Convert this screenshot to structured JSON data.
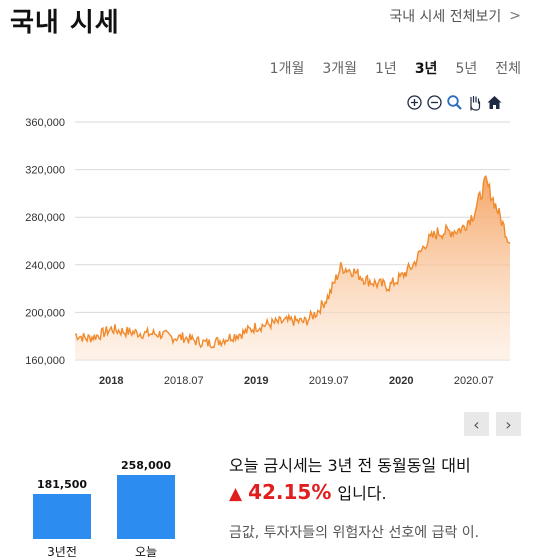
{
  "header": {
    "title": "국내 시세",
    "all_link": "국내 시세 전체보기"
  },
  "tabs": [
    "1개월",
    "3개월",
    "1년",
    "3년",
    "5년",
    "전체"
  ],
  "active_tab": "3년",
  "chart_tools": [
    "zoom-in-icon",
    "zoom-out-icon",
    "magnify-icon",
    "hand-pan-icon",
    "home-icon"
  ],
  "accent_color": "#f08a2c",
  "chart_data": {
    "type": "area",
    "yticks": [
      "360,000",
      "320,000",
      "280,000",
      "240,000",
      "200,000",
      "160,000"
    ],
    "ylim": [
      160000,
      360000
    ],
    "xticks": [
      "2018",
      "2018.07",
      "2019",
      "2019.07",
      "2020",
      "2020.07"
    ],
    "x": [
      "2017.10",
      "2017.11",
      "2017.12",
      "2018.01",
      "2018.02",
      "2018.03",
      "2018.04",
      "2018.05",
      "2018.06",
      "2018.07",
      "2018.08",
      "2018.09",
      "2018.10",
      "2018.11",
      "2018.12",
      "2019.01",
      "2019.02",
      "2019.03",
      "2019.04",
      "2019.05",
      "2019.06",
      "2019.07",
      "2019.08",
      "2019.09",
      "2019.10",
      "2019.11",
      "2019.12",
      "2020.01",
      "2020.02",
      "2020.03",
      "2020.04",
      "2020.05",
      "2020.06",
      "2020.07",
      "2020.08",
      "2020.09",
      "2020.10"
    ],
    "values": [
      181500,
      178000,
      181000,
      186000,
      184000,
      183000,
      182000,
      182000,
      179000,
      179000,
      176000,
      174000,
      176000,
      180000,
      183000,
      188000,
      190000,
      192000,
      193000,
      192000,
      200000,
      214000,
      238000,
      235000,
      228000,
      224000,
      222000,
      230000,
      240000,
      258000,
      267000,
      268000,
      270000,
      283000,
      310000,
      285000,
      258000
    ],
    "grid": true
  },
  "pager": {
    "prev": "‹",
    "next": "›"
  },
  "compare": {
    "bars": [
      {
        "label": "3년전",
        "value": 181500,
        "display": "181,500"
      },
      {
        "label": "오늘",
        "value": 258000,
        "display": "258,000"
      }
    ]
  },
  "summary": {
    "line1": "오늘 금시세는 3년 전 동월동일 대비",
    "arrow": "▲",
    "percent": "42.15%",
    "suffix": "입니다.",
    "line3": "금값, 투자자들의 위험자산 선호에 급락 이."
  }
}
